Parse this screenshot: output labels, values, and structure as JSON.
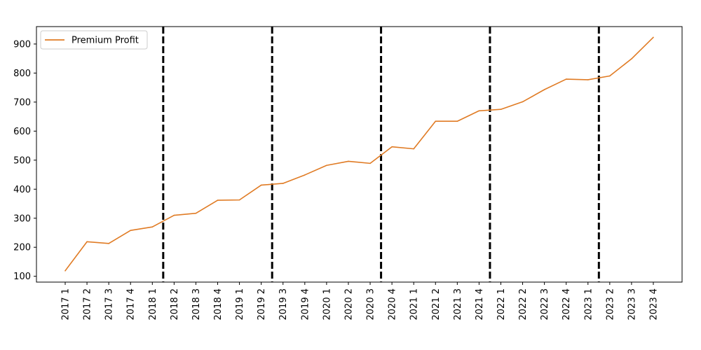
{
  "chart_data": {
    "type": "line",
    "title": "",
    "xlabel": "",
    "ylabel": "",
    "x": [
      "2017 1",
      "2017 2",
      "2017 3",
      "2017 4",
      "2018 1",
      "2018 2",
      "2018 3",
      "2018 4",
      "2019 1",
      "2019 2",
      "2019 3",
      "2019 4",
      "2020 1",
      "2020 2",
      "2020 3",
      "2020 4",
      "2021 1",
      "2021 2",
      "2021 3",
      "2021 4",
      "2022 1",
      "2022 2",
      "2022 3",
      "2022 4",
      "2023 1",
      "2023 2",
      "2023 3",
      "2023 4"
    ],
    "series": [
      {
        "name": "Premium Profit",
        "color": "#e07b24",
        "values": [
          119,
          219,
          213,
          258,
          270,
          310,
          317,
          362,
          363,
          414,
          420,
          449,
          482,
          496,
          489,
          546,
          539,
          634,
          634,
          670,
          675,
          701,
          743,
          779,
          777,
          790,
          849,
          923
        ]
      }
    ],
    "ylim": [
      80,
      960
    ],
    "yticks": [
      100,
      200,
      300,
      400,
      500,
      600,
      700,
      800,
      900
    ],
    "vertical_markers": [
      {
        "between": [
          "2018 1",
          "2018 2"
        ]
      },
      {
        "between": [
          "2019 2",
          "2019 3"
        ]
      },
      {
        "between": [
          "2020 3",
          "2020 4"
        ]
      },
      {
        "between": [
          "2021 4",
          "2022 1"
        ]
      },
      {
        "between": [
          "2023 1",
          "2023 2"
        ]
      }
    ],
    "marker_style": "black-dashed",
    "legend_position": "top-left",
    "grid": false
  }
}
